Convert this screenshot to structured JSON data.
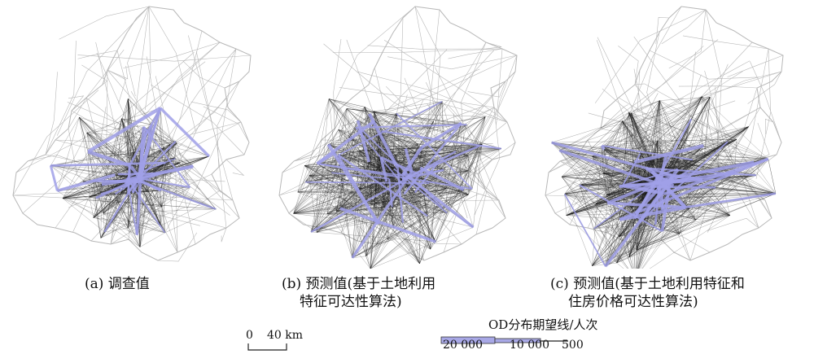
{
  "panels": [
    {
      "id": "a",
      "caption_lines": [
        "(a) 调查值"
      ]
    },
    {
      "id": "b",
      "caption_lines": [
        "(b) 预测值(基于土地利用",
        "特征可达性算法)"
      ]
    },
    {
      "id": "c",
      "caption_lines": [
        "(c) 预测值(基于土地利用特征和",
        "住房价格可达性算法)"
      ]
    }
  ],
  "scale_bar": {
    "zero": "0",
    "distance": "40 km"
  },
  "legend": {
    "title": "OD分布期望线/人次",
    "values": [
      "20 000",
      "10 000",
      "500"
    ],
    "line_color": "#a8a8e6",
    "line_outline": "#333333"
  },
  "colors": {
    "boundary": "#b8b8b8",
    "od_line": "#1a1a1a",
    "od_heavy": "#a0a0e8"
  }
}
